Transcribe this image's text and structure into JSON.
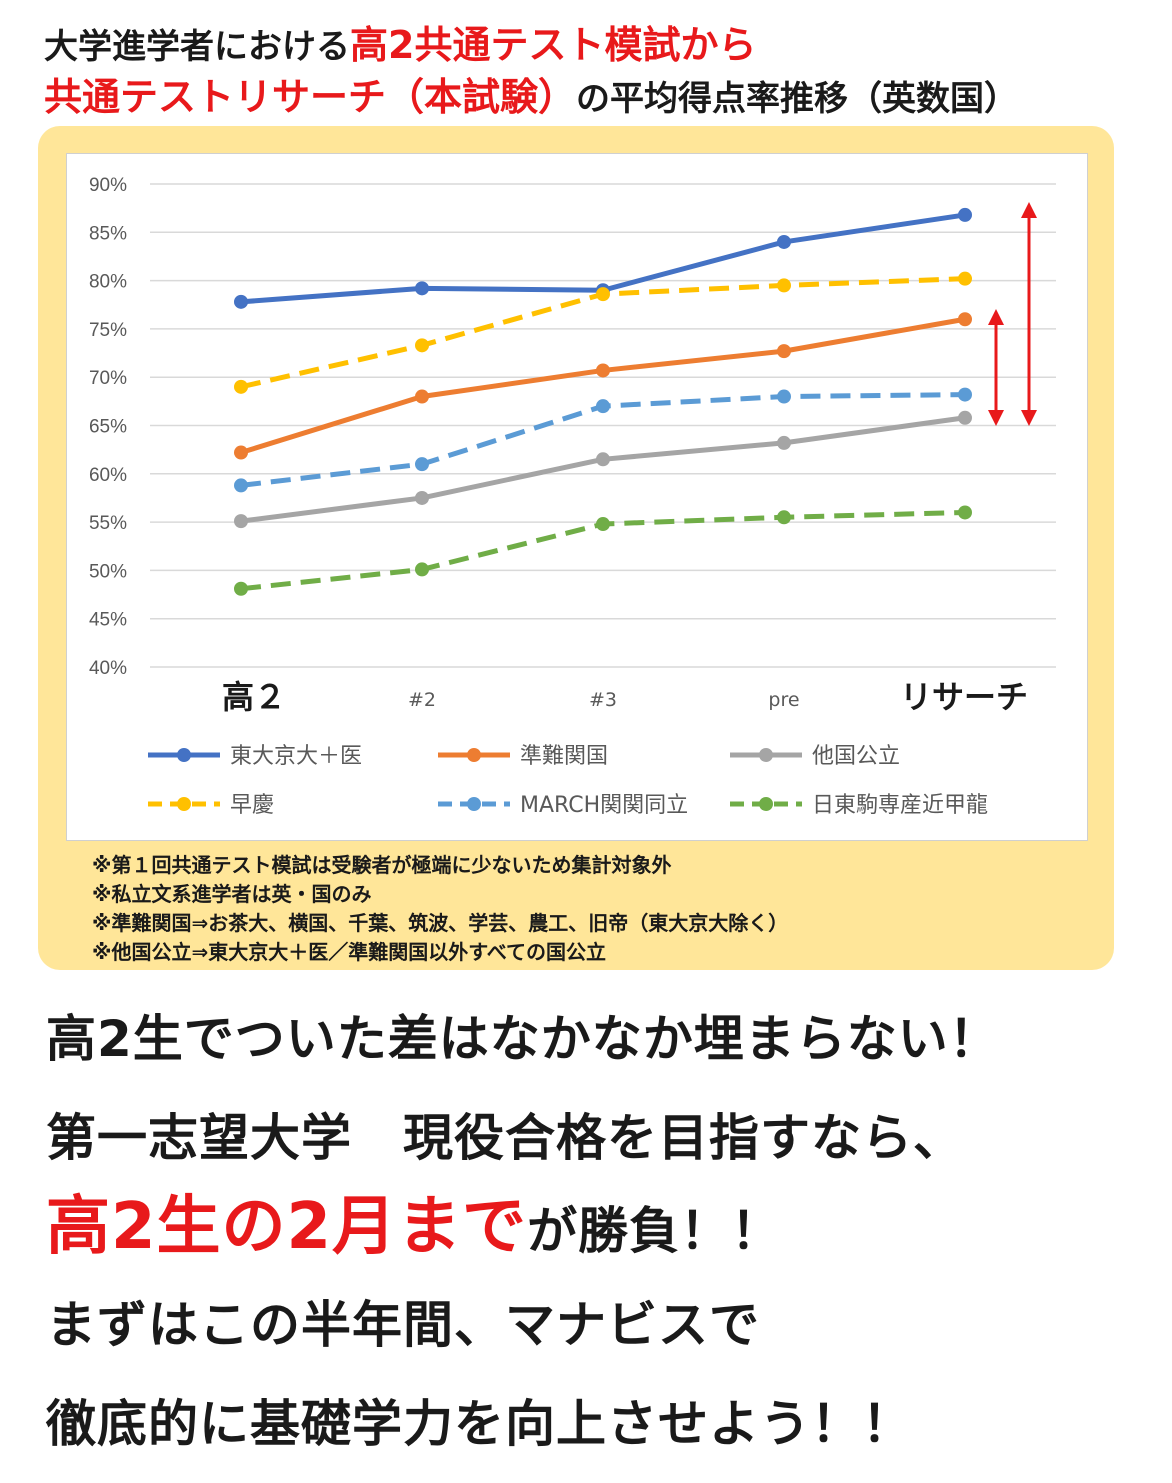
{
  "title": {
    "line1_prefix": "大学進学者における",
    "line1_highlight": "高2共通テスト模試から",
    "line2_highlight": "共通テストリサーチ（本試験）",
    "line2_suffix": "の平均得点率推移（英数国）"
  },
  "chart_data": {
    "type": "line",
    "categories": [
      "高２",
      "#2",
      "#3",
      "pre",
      "リサーチ"
    ],
    "ylim": [
      0.4,
      0.9
    ],
    "yticks": [
      "40%",
      "45%",
      "50%",
      "55%",
      "60%",
      "65%",
      "70%",
      "75%",
      "80%",
      "85%",
      "90%"
    ],
    "grid": true,
    "legend_position": "bottom",
    "series": [
      {
        "name": "東大京大＋医",
        "color": "#4472c4",
        "dashed": false,
        "values": [
          0.778,
          0.792,
          0.79,
          0.84,
          0.868
        ]
      },
      {
        "name": "準難関国",
        "color": "#ed7d31",
        "dashed": false,
        "values": [
          0.622,
          0.68,
          0.707,
          0.727,
          0.76
        ]
      },
      {
        "name": "他国公立",
        "color": "#a5a5a5",
        "dashed": false,
        "values": [
          0.551,
          0.575,
          0.615,
          0.632,
          0.658
        ]
      },
      {
        "name": "早慶",
        "color": "#ffc000",
        "dashed": true,
        "values": [
          0.69,
          0.733,
          0.786,
          0.795,
          0.802
        ]
      },
      {
        "name": "MARCH関関同立",
        "color": "#5b9bd5",
        "dashed": true,
        "values": [
          0.588,
          0.61,
          0.67,
          0.68,
          0.682
        ]
      },
      {
        "name": "日東駒専産近甲龍",
        "color": "#70ad47",
        "dashed": true,
        "values": [
          0.481,
          0.501,
          0.548,
          0.555,
          0.56
        ]
      }
    ],
    "annotation_color": "#e8191b"
  },
  "notes": [
    "※第１回共通テスト模試は受験者が極端に少ないため集計対象外",
    "※私立文系進学者は英・国のみ",
    "※準難関国⇒お茶大、横国、千葉、筑波、学芸、農工、旧帝（東大京大除く）",
    "※他国公立⇒東大京大＋医／準難関国以外すべての国公立"
  ],
  "message": {
    "line1": "高2生でついた差はなかなか埋まらない！",
    "line2": "第一志望大学　現役合格を目指すなら、",
    "line3_highlight": "高2生の2月まで",
    "line3_suffix": "が勝負！！",
    "line4": "まずはこの半年間、マナビスで",
    "line5": "徹底的に基礎学力を向上させよう！！"
  }
}
